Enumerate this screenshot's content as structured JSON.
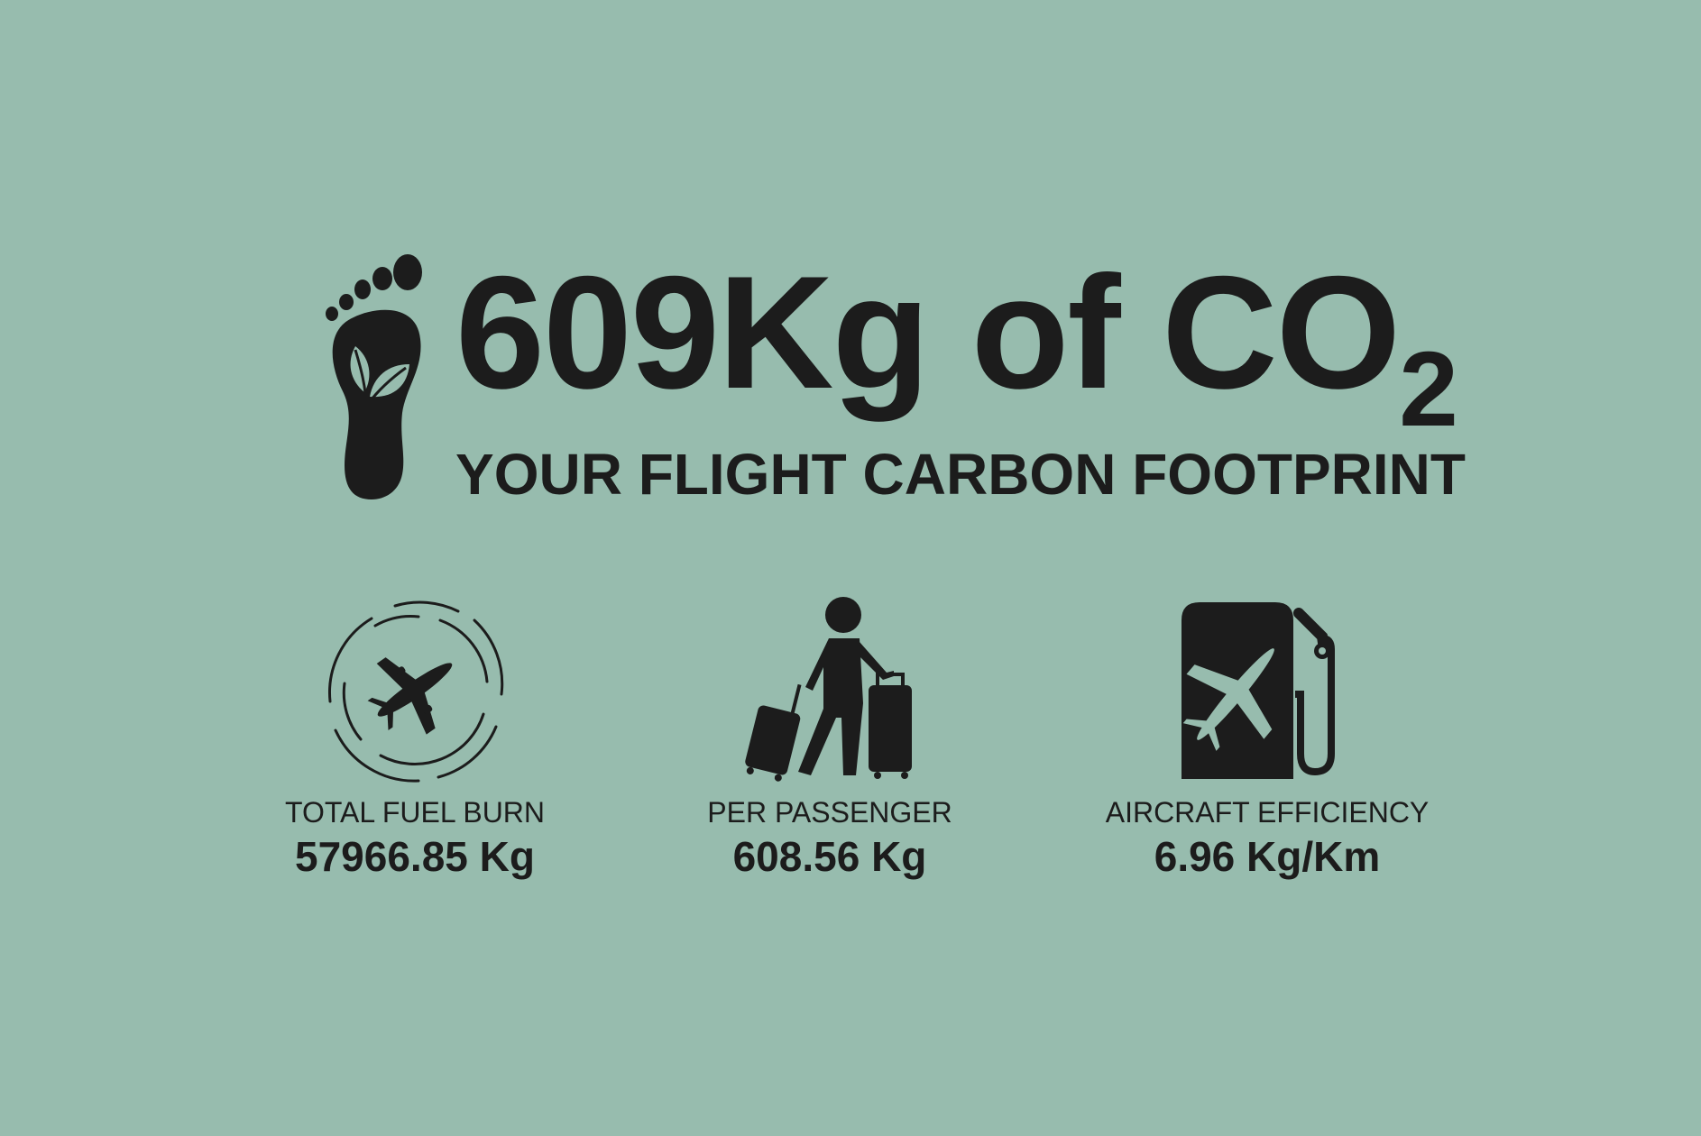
{
  "headline": {
    "amount": "609Kg of CO",
    "subscript": "2",
    "tagline": "YOUR FLIGHT CARBON FOOTPRINT"
  },
  "stats": [
    {
      "icon": "plane-target-icon",
      "label": "TOTAL FUEL BURN",
      "value": "57966.85 Kg"
    },
    {
      "icon": "traveler-luggage-icon",
      "label": "PER PASSENGER",
      "value": "608.56 Kg"
    },
    {
      "icon": "fuel-pump-plane-icon",
      "label": "AIRCRAFT EFFICIENCY",
      "value": "6.96 Kg/Km"
    }
  ],
  "colors": {
    "background": "#97bcae",
    "foreground": "#1c1c1c"
  }
}
